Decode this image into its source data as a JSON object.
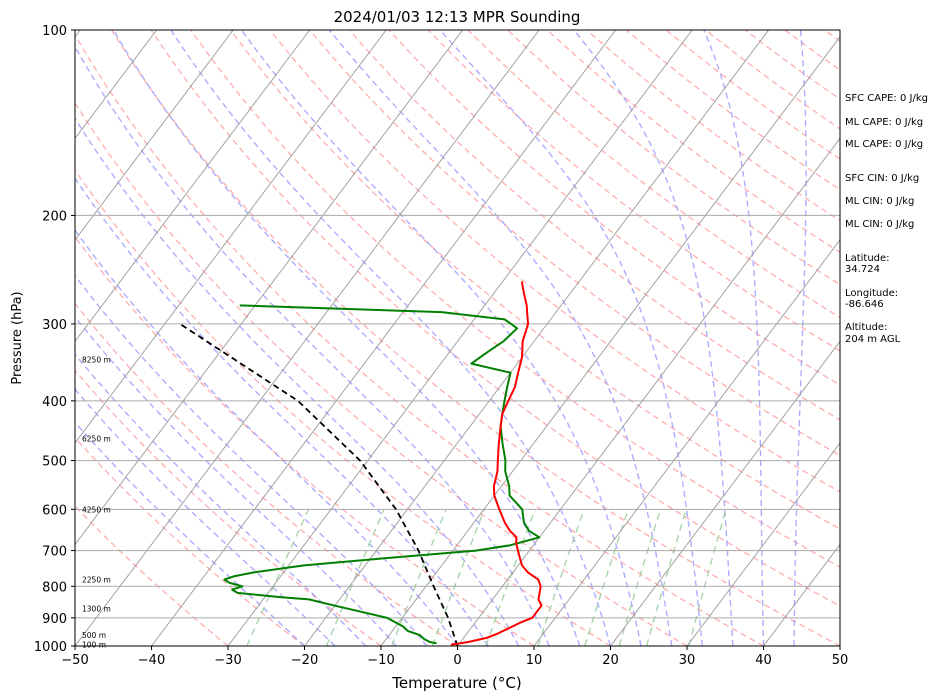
{
  "chart_data": {
    "type": "skew-t",
    "title": "2024/01/03 12:13 MPR Sounding",
    "xlabel": "Temperature (°C)",
    "ylabel": "Pressure (hPa)",
    "xlim": [
      -50,
      50
    ],
    "ylim": [
      1000,
      100
    ],
    "y_scale": "log",
    "x_ticks": [
      -50,
      -40,
      -30,
      -20,
      -10,
      0,
      10,
      20,
      30,
      40,
      50
    ],
    "y_ticks": [
      1000,
      900,
      800,
      700,
      600,
      500,
      400,
      300,
      200,
      100
    ],
    "grid": true,
    "colors": {
      "temperature": "#ff0000",
      "dewpoint": "#008000",
      "parcel": "#000000",
      "dry_adiabats": "#ff9999",
      "moist_adiabats": "#9999ff",
      "mixing_ratio": "#99cc99",
      "isotherms": "#999999"
    },
    "temperature_profile": {
      "pressure": [
        995,
        985,
        970,
        955,
        935,
        915,
        900,
        880,
        860,
        840,
        820,
        800,
        780,
        760,
        740,
        720,
        700,
        680,
        666,
        650,
        630,
        600,
        570,
        550,
        520,
        500,
        470,
        440,
        420,
        400,
        380,
        360,
        340,
        320,
        300,
        290,
        280,
        268,
        256
      ],
      "temperature": [
        -1,
        1,
        3,
        4,
        5,
        6,
        7,
        7,
        7,
        6,
        5.5,
        5,
        4,
        2,
        0.5,
        -0.5,
        -1.5,
        -2.5,
        -3,
        -4.5,
        -6,
        -8,
        -10,
        -11,
        -12,
        -13,
        -14.5,
        -16,
        -17,
        -17.5,
        -18,
        -19,
        -20,
        -21.5,
        -22.5,
        -23.5,
        -24.5,
        -26,
        -27.5
      ]
    },
    "dewpoint_profile": {
      "pressure": [
        990,
        985,
        975,
        960,
        945,
        930,
        900,
        860,
        840,
        833,
        820,
        810,
        800,
        790,
        780,
        770,
        760,
        740,
        720,
        700,
        686,
        666,
        650,
        630,
        600,
        570,
        550,
        520,
        500,
        470,
        440,
        420,
        400,
        380,
        360,
        348,
        333,
        320,
        305,
        295,
        287,
        280
      ],
      "temperature": [
        -3,
        -4,
        -5,
        -6,
        -8,
        -9,
        -12,
        -20,
        -24,
        -28,
        -34,
        -35,
        -34,
        -36,
        -37,
        -36,
        -34,
        -28,
        -18,
        -7,
        -3,
        0,
        -2,
        -3.5,
        -5,
        -8,
        -9,
        -11,
        -12,
        -14,
        -16,
        -17,
        -18,
        -19,
        -20,
        -26,
        -25,
        -24,
        -23.5,
        -26,
        -35,
        -62
      ]
    },
    "parcel_profile": {
      "pressure": [
        1000,
        900,
        800,
        700,
        600,
        500,
        400,
        300
      ],
      "temperature": [
        0,
        -4,
        -9,
        -14.5,
        -21.5,
        -31,
        -45,
        -68
      ]
    },
    "height_labels": [
      "100 m",
      "500 m",
      "1300 m",
      "2250 m",
      "4250 m",
      "6250 m",
      "8250 m"
    ],
    "height_label_pressures": [
      994,
      960,
      870,
      780,
      600,
      460,
      343
    ]
  },
  "info_panel": {
    "sfc_cape": "SFC CAPE: 0 J/kg",
    "ml_cape_1": "ML CAPE: 0 J/kg",
    "ml_cape_2": "ML CAPE: 0 J/kg",
    "sfc_cin": "SFC CIN: 0 J/kg",
    "ml_cin_1": "ML CIN: 0 J/kg",
    "ml_cin_2": "ML CIN: 0 J/kg",
    "latitude_label": "Latitude:",
    "latitude_value": "34.724",
    "longitude_label": "Longitude:",
    "longitude_value": "-86.646",
    "altitude_label": "Altitude:",
    "altitude_value": "204 m AGL"
  }
}
